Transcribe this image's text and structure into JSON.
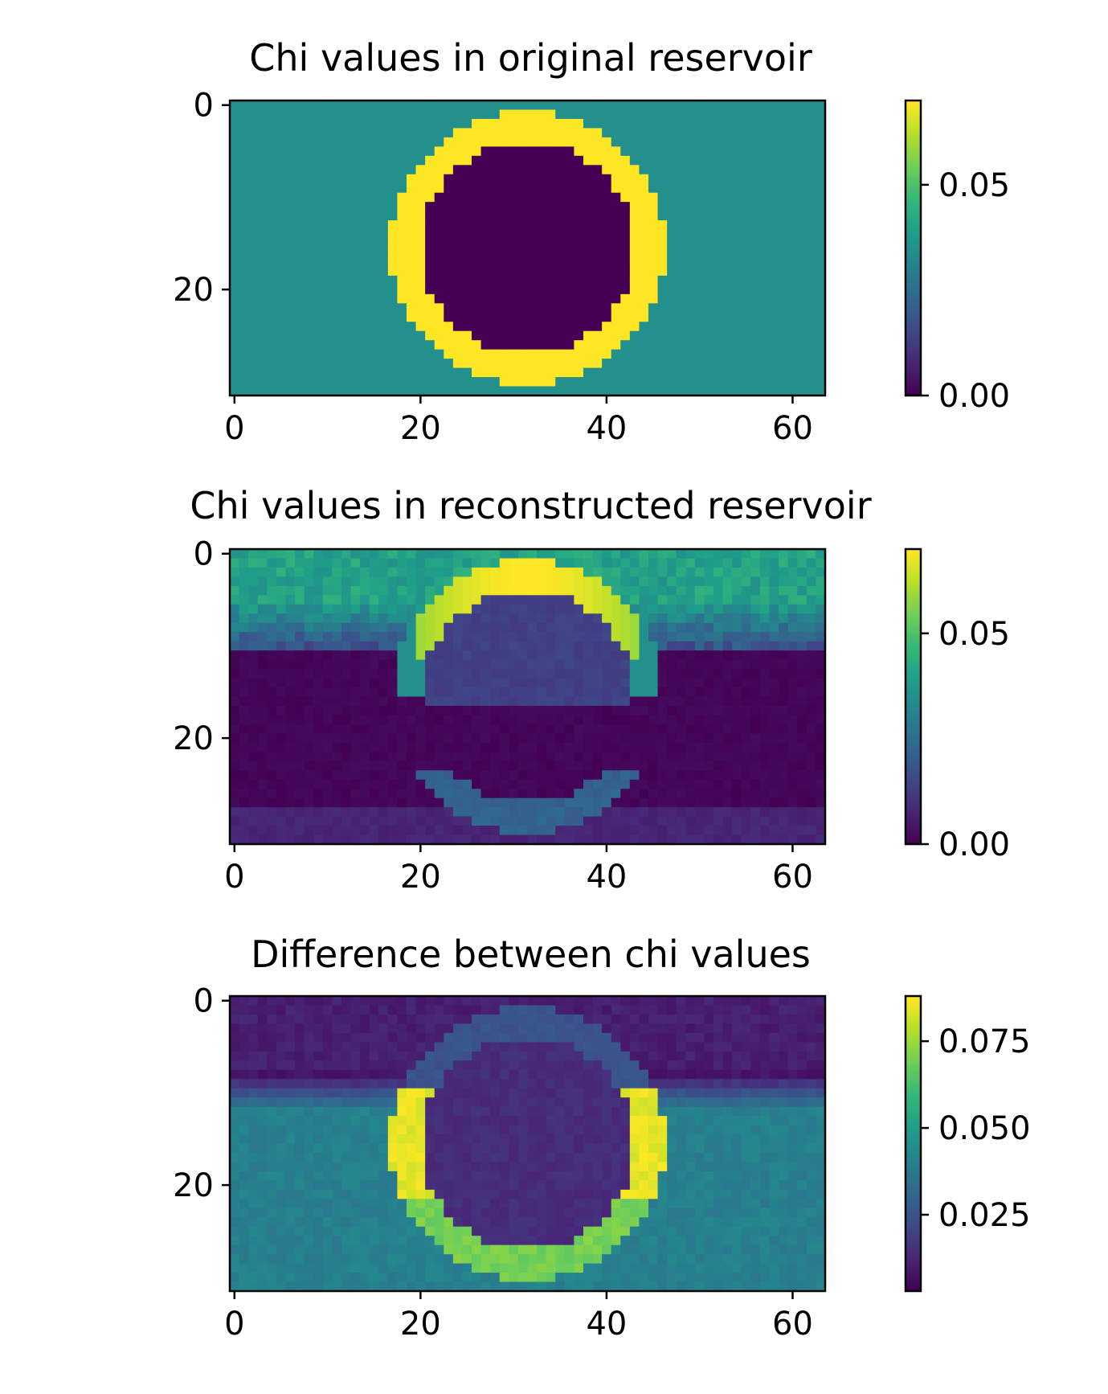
{
  "figure": {
    "colormap": "viridis",
    "colormap_stops": [
      "#440154",
      "#482777",
      "#3e4a89",
      "#31688e",
      "#26828e",
      "#1f9e89",
      "#35b779",
      "#6ece58",
      "#b5de2b",
      "#fde725"
    ]
  },
  "chart_data": [
    {
      "type": "heatmap",
      "title": "Chi values in original reservoir",
      "grid_cols": 64,
      "grid_rows": 32,
      "xlim": [
        -0.5,
        63.5
      ],
      "ylim": [
        31.5,
        -0.5
      ],
      "xticks": [
        0,
        20,
        40,
        60
      ],
      "xtick_labels": [
        "0",
        "20",
        "40",
        "60"
      ],
      "yticks": [
        0,
        20
      ],
      "ytick_labels": [
        "0",
        "20"
      ],
      "field": {
        "kind": "ring",
        "center": [
          31.5,
          15.5
        ],
        "inner_radius": 11.5,
        "outer_radius": 14.8,
        "background": 0.035,
        "ring": 0.07,
        "inside": 0.0
      },
      "colorbar": {
        "vmin": 0.0,
        "vmax": 0.07,
        "ticks": [
          0.0,
          0.05
        ],
        "tick_labels": [
          "0.00",
          "0.05"
        ]
      }
    },
    {
      "type": "heatmap",
      "title": "Chi values in reconstructed reservoir",
      "grid_cols": 64,
      "grid_rows": 32,
      "xlim": [
        -0.5,
        63.5
      ],
      "ylim": [
        31.5,
        -0.5
      ],
      "xticks": [
        0,
        20,
        40,
        60
      ],
      "xtick_labels": [
        "0",
        "20",
        "40",
        "60"
      ],
      "yticks": [
        0,
        20
      ],
      "ytick_labels": [
        "0",
        "20"
      ],
      "field": {
        "kind": "reconstruction",
        "center": [
          31.5,
          15.5
        ],
        "inner_radius": 11.5,
        "outer_radius": 14.8,
        "top_level": 0.04,
        "band_level": 0.0,
        "band_rows": [
          11,
          27
        ],
        "top_arc": 0.07,
        "bottom_arc": 0.022
      },
      "colorbar": {
        "vmin": 0.0,
        "vmax": 0.07,
        "ticks": [
          0.0,
          0.05
        ],
        "tick_labels": [
          "0.00",
          "0.05"
        ]
      }
    },
    {
      "type": "heatmap",
      "title": "Difference between chi values",
      "grid_cols": 64,
      "grid_rows": 32,
      "xlim": [
        -0.5,
        63.5
      ],
      "ylim": [
        31.5,
        -0.5
      ],
      "xticks": [
        0,
        20,
        40,
        60
      ],
      "xtick_labels": [
        "0",
        "20",
        "40",
        "60"
      ],
      "yticks": [
        0,
        20
      ],
      "ytick_labels": [
        "0",
        "20"
      ],
      "field": {
        "kind": "difference",
        "center": [
          31.5,
          15.5
        ],
        "inner_radius": 11.5,
        "outer_radius": 14.8,
        "top_level": 0.008,
        "band_level": 0.04,
        "ring_top": 0.025,
        "ring_side": 0.085,
        "ring_bottom": 0.07,
        "inside": 0.012
      },
      "colorbar": {
        "vmin": 0.003,
        "vmax": 0.088,
        "ticks": [
          0.025,
          0.05,
          0.075
        ],
        "tick_labels": [
          "0.025",
          "0.050",
          "0.075"
        ]
      }
    }
  ]
}
